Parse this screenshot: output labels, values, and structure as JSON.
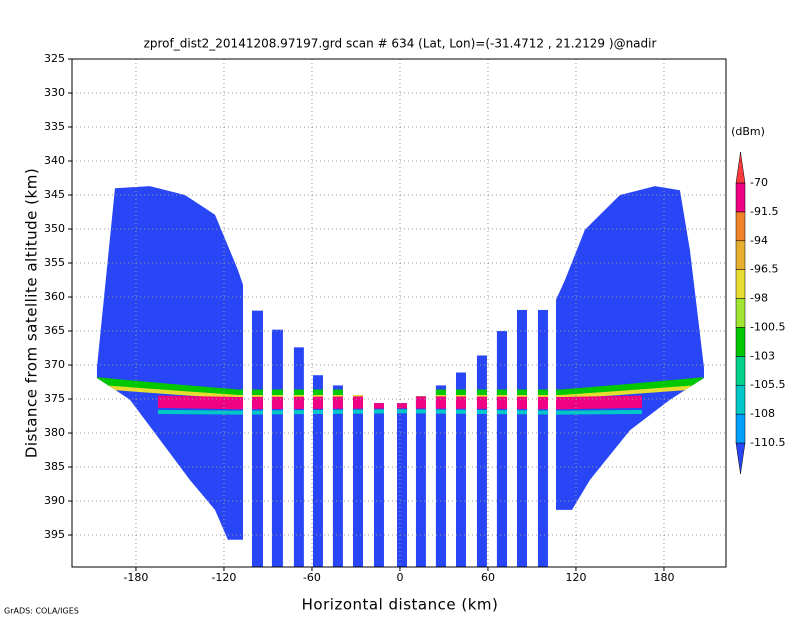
{
  "chart_data": {
    "type": "profile",
    "title": "zprof_dist2_20141208.97197.grd  scan # 634  (Lat, Lon)=(-31.4712 , 21.2129 )@nadir",
    "x_label": "Horizontal distance (km)",
    "y_label": "Distance from satellite altitude (km)",
    "credit": "GrADS: COLA/IGES",
    "xlim": [
      -223.6,
      222.3
    ],
    "ylim": [
      325,
      399.7
    ],
    "y_inverted": true,
    "xticks": [
      -180,
      -120,
      -60,
      0,
      60,
      120,
      180
    ],
    "yticks": [
      325,
      330,
      335,
      340,
      345,
      350,
      355,
      360,
      365,
      370,
      375,
      380,
      385,
      390,
      395
    ],
    "grid": true,
    "colorbar": {
      "label": "(dBm)",
      "levels": [
        -110.5,
        -108,
        -105.5,
        -103,
        -100.5,
        -98,
        -96.5,
        -94,
        -91.5,
        -70
      ],
      "colors": [
        "#2846f5",
        "#00a0ff",
        "#00c8c8",
        "#00d28c",
        "#00c800",
        "#a0e632",
        "#e6dc32",
        "#e6af2d",
        "#f08228",
        "#f00082",
        "#fa3c3c"
      ]
    },
    "swath_value": -111,
    "blocks": [
      {
        "x": [
          -194.3,
          -170.5,
          -146.6,
          -126.1,
          -110.5,
          -107.0,
          -107.0,
          -117.3,
          -126.1,
          -143.2,
          -163.6,
          -184.1,
          -206.6,
          -206.6
        ],
        "depth": [
          344.0,
          343.7,
          345.0,
          347.9,
          356.0,
          358.2,
          395.7,
          395.7,
          391.3,
          386.9,
          381.0,
          375.1,
          371.9,
          370.4
        ]
      },
      {
        "x": [
          106.4,
          106.4,
          117.3,
          129.5,
          156.8,
          184.1,
          207.3,
          207.3,
          197.7,
          190.9,
          173.9,
          150.0,
          126.1,
          112.5
        ],
        "depth": [
          360.4,
          391.3,
          391.3,
          386.9,
          379.6,
          375.1,
          371.9,
          370.4,
          353.1,
          344.3,
          343.7,
          345.0,
          350.1,
          357.5
        ]
      }
    ],
    "stripes": [
      {
        "x0": -100.9,
        "x1": -93.4,
        "top": 362.0,
        "bottom": 399.7
      },
      {
        "x0": -87.3,
        "x1": -79.8,
        "top": 364.8,
        "bottom": 399.7
      },
      {
        "x0": -72.3,
        "x1": -65.5,
        "top": 367.4,
        "bottom": 399.7
      },
      {
        "x0": -59.3,
        "x1": -52.5,
        "top": 371.5,
        "bottom": 399.7
      },
      {
        "x0": -45.7,
        "x1": -38.9,
        "top": 373.0,
        "bottom": 399.7
      },
      {
        "x0": -32.0,
        "x1": -25.2,
        "top": 374.4,
        "bottom": 399.7
      },
      {
        "x0": -17.7,
        "x1": -10.9,
        "top": 375.6,
        "bottom": 399.7
      },
      {
        "x0": -2.0,
        "x1": 4.8,
        "top": 375.6,
        "bottom": 399.7
      },
      {
        "x0": 10.9,
        "x1": 17.7,
        "top": 374.6,
        "bottom": 399.7
      },
      {
        "x0": 24.5,
        "x1": 31.4,
        "top": 373.0,
        "bottom": 399.7
      },
      {
        "x0": 38.2,
        "x1": 45.0,
        "top": 371.1,
        "bottom": 399.7
      },
      {
        "x0": 52.5,
        "x1": 59.3,
        "top": 368.6,
        "bottom": 399.7
      },
      {
        "x0": 66.1,
        "x1": 73.0,
        "top": 365.0,
        "bottom": 399.7
      },
      {
        "x0": 79.8,
        "x1": 86.6,
        "top": 361.9,
        "bottom": 399.7
      },
      {
        "x0": 94.1,
        "x1": 100.9,
        "top": 361.9,
        "bottom": 399.7
      }
    ],
    "bands": [
      {
        "value": -103,
        "thickness": 1.2,
        "x": [
          -207,
          -150,
          -110,
          110,
          150,
          207
        ],
        "depth": [
          372.4,
          373.5,
          374.2,
          374.2,
          373.5,
          372.4
        ]
      },
      {
        "value": -98,
        "thickness": 0.6,
        "x": [
          -207,
          -150,
          -110,
          110,
          150,
          207
        ],
        "depth": [
          373.2,
          374.1,
          374.7,
          374.7,
          374.1,
          373.2
        ]
      },
      {
        "value": -106,
        "thickness": 0.6,
        "x": [
          -165,
          -110,
          0,
          110,
          165
        ],
        "depth": [
          376.9,
          377.0,
          376.8,
          377.0,
          376.9
        ]
      },
      {
        "value": -80,
        "thickness": 1.8,
        "x": [
          -165,
          -110,
          0,
          110,
          165
        ],
        "depth": [
          375.4,
          375.6,
          375.5,
          375.6,
          375.4
        ]
      }
    ]
  }
}
